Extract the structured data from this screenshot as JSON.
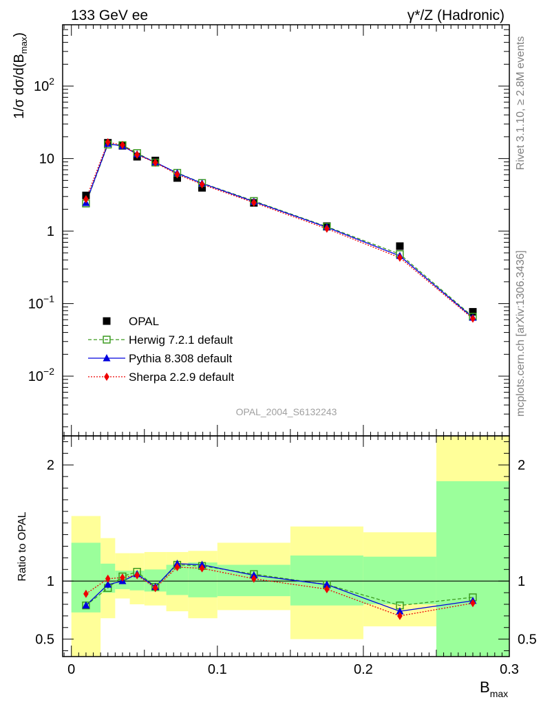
{
  "header": {
    "left_label": "133 GeV ee",
    "right_label": "γ*/Z (Hadronic)"
  },
  "side_labels": {
    "rivet": "Rivet 3.1.10, ≥ 2.8M events",
    "mcplots": "mcplots.cern.ch [arXiv:1306.3436]"
  },
  "watermark": "OPAL_2004_S6132243",
  "axes": {
    "ylabel_main": "1/σ dσ/d(B",
    "ylabel_main_sub": "max",
    "ylabel_main_close": ")",
    "ylabel_ratio": "Ratio to OPAL",
    "xlabel": "B",
    "xlabel_sub": "max",
    "main_ylog": true,
    "main_ylim": [
      0.0015,
      700
    ],
    "ratio_ylim": [
      0.35,
      2.25
    ],
    "xlim": [
      -0.006,
      0.3
    ],
    "x_ticks": [
      {
        "value": 0,
        "label": "0"
      },
      {
        "value": 0.1,
        "label": "0.1"
      },
      {
        "value": 0.2,
        "label": "0.2"
      },
      {
        "value": 0.3,
        "label": "0.3"
      }
    ],
    "main_y_ticks": [
      {
        "value": 0.01,
        "base": "10",
        "exp": "−2"
      },
      {
        "value": 0.1,
        "base": "10",
        "exp": "−1"
      },
      {
        "value": 1,
        "base": "1",
        "exp": ""
      },
      {
        "value": 10,
        "base": "10",
        "exp": ""
      },
      {
        "value": 100,
        "base": "10",
        "exp": "2"
      }
    ],
    "ratio_y_ticks": [
      {
        "value": 0.5,
        "label": "0.5"
      },
      {
        "value": 1,
        "label": "1"
      },
      {
        "value": 2,
        "label": "2"
      }
    ]
  },
  "legend": [
    {
      "name": "OPAL",
      "color": "#000000",
      "marker": "square-filled",
      "line": "none"
    },
    {
      "name": "Herwig 7.2.1 default",
      "color": "#3a9a1e",
      "marker": "square-open",
      "line": "dashed"
    },
    {
      "name": "Pythia 8.308 default",
      "color": "#0000dd",
      "marker": "triangle-filled",
      "line": "solid"
    },
    {
      "name": "Sherpa 2.2.9 default",
      "color": "#ee0000",
      "marker": "diamond-filled",
      "line": "dotted"
    }
  ],
  "chart_data": {
    "type": "scatter",
    "x": [
      0.01,
      0.025,
      0.035,
      0.045,
      0.0575,
      0.0725,
      0.0895,
      0.125,
      0.175,
      0.225,
      0.275
    ],
    "bin_edges": [
      0.0,
      0.02,
      0.03,
      0.04,
      0.05,
      0.065,
      0.08,
      0.1,
      0.15,
      0.2,
      0.25,
      0.3
    ],
    "series": [
      {
        "name": "OPAL",
        "values": [
          3.1,
          16.5,
          15.0,
          10.6,
          9.4,
          5.4,
          3.95,
          2.45,
          1.17,
          0.62,
          0.077
        ]
      },
      {
        "name": "Herwig 7.2.1 default",
        "values": [
          2.4,
          15.6,
          15.3,
          11.9,
          8.8,
          6.35,
          4.6,
          2.6,
          1.15,
          0.48,
          0.066
        ]
      },
      {
        "name": "Pythia 8.308 default",
        "values": [
          2.45,
          16.0,
          14.9,
          11.5,
          8.9,
          6.3,
          4.55,
          2.55,
          1.13,
          0.455,
          0.064
        ]
      },
      {
        "name": "Sherpa 2.2.9 default",
        "values": [
          2.75,
          16.8,
          15.4,
          11.3,
          8.8,
          6.05,
          4.4,
          2.47,
          1.08,
          0.43,
          0.062
        ]
      }
    ],
    "ratio_series": [
      {
        "name": "Herwig 7.2.1 default",
        "values": [
          0.79,
          0.94,
          1.04,
          1.08,
          0.95,
          1.14,
          1.13,
          1.06,
          0.97,
          0.79,
          0.86
        ]
      },
      {
        "name": "Pythia 8.308 default",
        "values": [
          0.79,
          0.97,
          1.0,
          1.06,
          0.95,
          1.15,
          1.14,
          1.05,
          0.97,
          0.74,
          0.83
        ]
      },
      {
        "name": "Sherpa 2.2.9 default",
        "values": [
          0.89,
          1.02,
          1.03,
          1.05,
          0.94,
          1.12,
          1.11,
          1.02,
          0.93,
          0.7,
          0.81
        ]
      }
    ],
    "ratio_bands": {
      "stat_lo": [
        0.73,
        0.9,
        0.93,
        0.92,
        0.91,
        0.88,
        0.86,
        0.87,
        0.79,
        0.8,
        0.35
      ],
      "stat_hi": [
        1.33,
        1.15,
        1.09,
        1.09,
        1.1,
        1.14,
        1.16,
        1.14,
        1.22,
        1.21,
        1.86
      ],
      "tot_lo": [
        0.35,
        0.68,
        0.85,
        0.8,
        0.79,
        0.74,
        0.68,
        0.75,
        0.5,
        0.61,
        0.35
      ],
      "tot_hi": [
        1.56,
        1.37,
        1.24,
        1.24,
        1.25,
        1.25,
        1.26,
        1.33,
        1.47,
        1.42,
        2.25
      ]
    },
    "colors": {
      "stat_band": "#9bff9b",
      "total_band": "#ffff99"
    }
  }
}
